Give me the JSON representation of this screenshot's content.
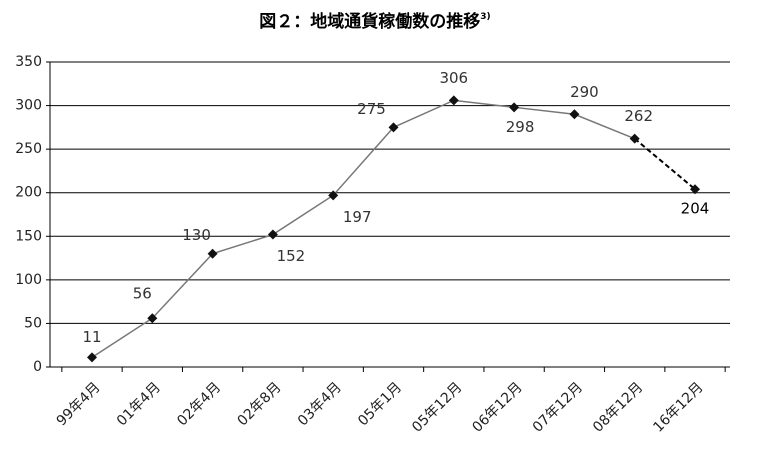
{
  "chart_data": {
    "type": "line",
    "title": "図２：地域通貨稼働数の推移",
    "title_note": "3)",
    "categories": [
      "99年4月",
      "01年4月",
      "02年4月",
      "02年8月",
      "03年4月",
      "05年1月",
      "05年12月",
      "06年12月",
      "07年12月",
      "08年12月",
      "16年12月"
    ],
    "series": [
      {
        "color": "#777777",
        "values": [
          11,
          56,
          130,
          152,
          197,
          275,
          306,
          298,
          290,
          262,
          204
        ]
      }
    ],
    "last_segment_dashed": true,
    "last_segment_color": "#000000",
    "ylim": [
      0,
      350
    ],
    "yticks": [
      0,
      50,
      100,
      150,
      200,
      250,
      300,
      350
    ],
    "grid": true
  }
}
